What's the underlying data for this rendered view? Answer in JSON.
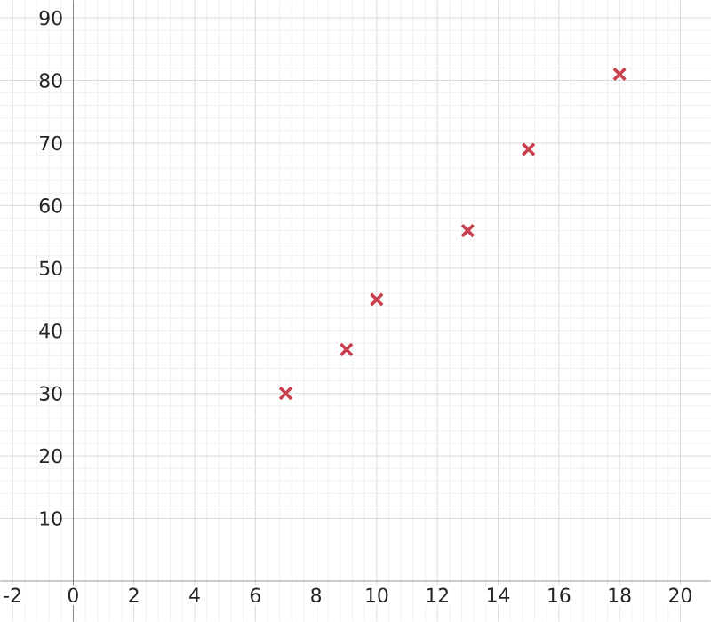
{
  "chart_data": {
    "type": "scatter",
    "x": [
      7,
      9,
      10,
      13,
      15,
      18
    ],
    "values": [
      30,
      37,
      45,
      56,
      69,
      81
    ],
    "color": "#c8404f",
    "marker": "cross",
    "xlim": [
      -2.4,
      21
    ],
    "ylim": [
      -6.5,
      92.8
    ],
    "xticks": [
      -2,
      0,
      2,
      4,
      6,
      8,
      10,
      12,
      14,
      16,
      18,
      20
    ],
    "yticks": [
      10,
      20,
      30,
      40,
      50,
      60,
      70,
      80,
      90
    ],
    "grid": true
  }
}
